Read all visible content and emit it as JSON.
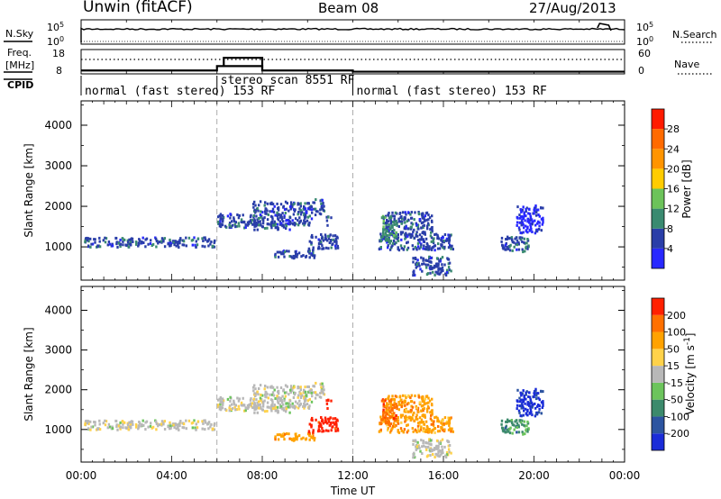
{
  "header": {
    "station": "Unwin (fitACF)",
    "beam": "Beam 08",
    "date": "27/Aug/2013"
  },
  "summary": {
    "nsky_label": "N.Sky",
    "nsearch_label": "N.Search",
    "freq_label_line1": "Freq.",
    "freq_label_line2": "[MHz]",
    "nave_label": "Nave",
    "cpid_label": "CPID",
    "nsky_ticks": [
      "10^5",
      "10^0"
    ],
    "nsearch_ticks": [
      "10^5",
      "10^0"
    ],
    "freq_ticks": [
      "18",
      "8"
    ],
    "nave_ticks": [
      "60",
      "0"
    ],
    "cpid_segments": [
      {
        "label": "normal (fast stereo) 153 RF",
        "start": 0,
        "end": 6
      },
      {
        "label": "stereo_scan 8551 RF",
        "start": 6,
        "end": 12
      },
      {
        "label": "normal (fast stereo) 153 RF",
        "start": 12,
        "end": 24
      }
    ]
  },
  "panels": {
    "power_cbar_label": "Power [dB]",
    "velocity_cbar_label": "Velocity [m s^-1]",
    "ylabel": "Slant Range [km]",
    "xlabel": "Time UT"
  },
  "chart_data": {
    "type": "heatmap",
    "x_unit": "hours UT",
    "xlim": [
      0,
      24
    ],
    "x_ticks": [
      0,
      4,
      8,
      12,
      16,
      20,
      24
    ],
    "x_tick_labels": [
      "00:00",
      "04:00",
      "08:00",
      "12:00",
      "16:00",
      "20:00",
      "00:00"
    ],
    "ylim": [
      180,
      4600
    ],
    "y_ticks": [
      1000,
      2000,
      3000,
      4000
    ],
    "y_tick_labels": [
      "1000",
      "2000",
      "3000",
      "4000"
    ],
    "vlines": [
      6,
      12
    ],
    "summary_series": {
      "freq_steps": [
        [
          0,
          9.4
        ],
        [
          6,
          11.2
        ],
        [
          8,
          9.4
        ],
        [
          12,
          8.9
        ],
        [
          24,
          8.9
        ]
      ],
      "freq_raised": [
        [
          6.3,
          8,
          14.6
        ]
      ],
      "nave_dotted": 12.3
    },
    "power_colorbar": {
      "tick_labels": [
        "4",
        "8",
        "12",
        "16",
        "20",
        "24",
        "28"
      ],
      "colors": [
        "#2828ff",
        "#2a3ea8",
        "#3a8a70",
        "#6cc35a",
        "#ffcc00",
        "#ff9400",
        "#ff6a00",
        "#ff1a00"
      ]
    },
    "velocity_colorbar": {
      "tick_labels": [
        "200",
        "100",
        "50",
        "15",
        "-15",
        "-50",
        "-100",
        "-200"
      ],
      "colors": [
        "#1a2cd8",
        "#2c54a0",
        "#3c8a6c",
        "#6cc45c",
        "#b8b8b8",
        "#ffd24a",
        "#ffa200",
        "#ff7000",
        "#ff2000"
      ]
    },
    "echo_regions": [
      {
        "t0": 0.1,
        "t1": 5.9,
        "r0": 1020,
        "r1": 1260,
        "power": 1,
        "velocity": 4
      },
      {
        "t0": 6.0,
        "t1": 7.5,
        "r0": 1500,
        "r1": 1850,
        "power": 1,
        "velocity": 4
      },
      {
        "t0": 7.5,
        "t1": 10.2,
        "r0": 1550,
        "r1": 2150,
        "power": 1,
        "velocity": 4
      },
      {
        "t0": 10.2,
        "t1": 10.7,
        "r0": 1800,
        "r1": 2200,
        "power": 1,
        "velocity": 4
      },
      {
        "t0": 7.6,
        "t1": 9.2,
        "r0": 1450,
        "r1": 1600,
        "power": 1,
        "velocity": 4
      },
      {
        "t0": 8.5,
        "t1": 10.3,
        "r0": 750,
        "r1": 950,
        "power": 1,
        "velocity": 6
      },
      {
        "t0": 10.0,
        "t1": 11.3,
        "r0": 950,
        "r1": 1350,
        "power": 1,
        "velocity": 8
      },
      {
        "t0": 10.8,
        "t1": 11.0,
        "r0": 1550,
        "r1": 1800,
        "power": 1,
        "velocity": 8
      },
      {
        "t0": 13.1,
        "t1": 16.4,
        "r0": 950,
        "r1": 1350,
        "power": 1,
        "velocity": 6
      },
      {
        "t0": 13.4,
        "t1": 15.5,
        "r0": 1300,
        "r1": 1900,
        "power": 1,
        "velocity": 6
      },
      {
        "t0": 13.2,
        "t1": 13.9,
        "r0": 1100,
        "r1": 1800,
        "power": 2,
        "velocity": 7
      },
      {
        "t0": 14.6,
        "t1": 16.3,
        "r0": 330,
        "r1": 800,
        "power": 1,
        "velocity": 4
      },
      {
        "t0": 18.5,
        "t1": 19.8,
        "r0": 900,
        "r1": 1300,
        "power": 1,
        "velocity": 2
      },
      {
        "t0": 19.2,
        "t1": 20.4,
        "r0": 1350,
        "r1": 2050,
        "power": 0,
        "velocity": 0
      }
    ]
  }
}
